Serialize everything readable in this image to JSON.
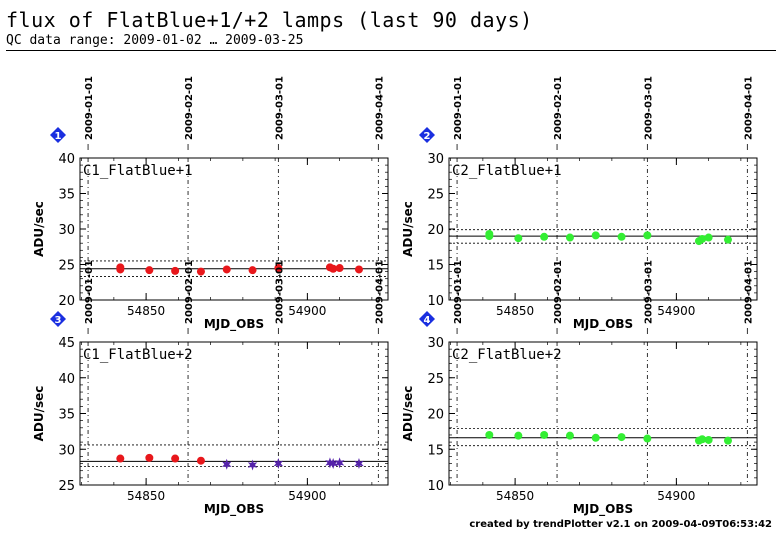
{
  "header": {
    "title": "flux of FlatBlue+1/+2 lamps (last 90 days)",
    "subtitle": "QC data range: 2009-01-02 … 2009-03-25"
  },
  "footer": "created by trendPlotter v2.1 on 2009-04-09T06:53:42",
  "colors": {
    "red": "#e8171b",
    "green": "#33ee33",
    "purple": "#5522aa",
    "badge": "#1a2fe0"
  },
  "chart_data": [
    {
      "type": "scatter",
      "badge": "1",
      "label": "C1_FlatBlue+1",
      "xlabel": "MJD_OBS",
      "ylabel": "ADU/sec",
      "xlim": [
        54829.5,
        54925
      ],
      "ylim": [
        20,
        40
      ],
      "yticks": [
        20,
        25,
        30,
        35,
        40
      ],
      "xticks": [
        54850,
        54900
      ],
      "date_ticks": [
        {
          "x": 54832,
          "label": "2009-01-01"
        },
        {
          "x": 54863,
          "label": "2009-02-01"
        },
        {
          "x": 54891,
          "label": "2009-03-01"
        },
        {
          "x": 54922,
          "label": "2009-04-01"
        }
      ],
      "mean": 24.4,
      "band": [
        23.3,
        25.5
      ],
      "series": [
        {
          "marker": "circle",
          "color": "red",
          "x": [
            54842,
            54842,
            54851,
            54859,
            54867,
            54875,
            54883,
            54891,
            54907,
            54908,
            54910,
            54916
          ],
          "y": [
            24.6,
            24.3,
            24.2,
            24.1,
            24.0,
            24.3,
            24.2,
            24.5,
            24.6,
            24.4,
            24.5,
            24.3
          ]
        }
      ]
    },
    {
      "type": "scatter",
      "badge": "2",
      "label": "C2_FlatBlue+1",
      "xlabel": "MJD_OBS",
      "ylabel": "ADU/sec",
      "xlim": [
        54829.5,
        54925
      ],
      "ylim": [
        10,
        30
      ],
      "yticks": [
        10,
        15,
        20,
        25,
        30
      ],
      "xticks": [
        54850,
        54900
      ],
      "date_ticks": [
        {
          "x": 54832,
          "label": "2009-01-01"
        },
        {
          "x": 54863,
          "label": "2009-02-01"
        },
        {
          "x": 54891,
          "label": "2009-03-01"
        },
        {
          "x": 54922,
          "label": "2009-04-01"
        }
      ],
      "mean": 19.0,
      "band": [
        18.0,
        19.9
      ],
      "series": [
        {
          "marker": "circle",
          "color": "green",
          "x": [
            54842,
            54842,
            54851,
            54859,
            54867,
            54875,
            54883,
            54891,
            54907,
            54908,
            54910,
            54916
          ],
          "y": [
            19.3,
            19.0,
            18.7,
            18.9,
            18.8,
            19.1,
            18.9,
            19.1,
            18.3,
            18.6,
            18.8,
            18.5
          ]
        }
      ]
    },
    {
      "type": "scatter",
      "badge": "3",
      "label": "C1_FlatBlue+2",
      "xlabel": "MJD_OBS",
      "ylabel": "ADU/sec",
      "xlim": [
        54829.5,
        54925
      ],
      "ylim": [
        25,
        45
      ],
      "yticks": [
        25,
        30,
        35,
        40,
        45
      ],
      "xticks": [
        54850,
        54900
      ],
      "date_ticks": [
        {
          "x": 54832,
          "label": "2009-01-01"
        },
        {
          "x": 54863,
          "label": "2009-02-01"
        },
        {
          "x": 54891,
          "label": "2009-03-01"
        },
        {
          "x": 54922,
          "label": "2009-04-01"
        }
      ],
      "mean": 28.3,
      "band": [
        27.6,
        30.6
      ],
      "series": [
        {
          "marker": "circle",
          "color": "red",
          "x": [
            54842,
            54851,
            54859,
            54867
          ],
          "y": [
            28.7,
            28.8,
            28.7,
            28.4
          ]
        },
        {
          "marker": "star",
          "color": "purple",
          "x": [
            54875,
            54883,
            54891,
            54907,
            54908,
            54910,
            54916
          ],
          "y": [
            27.9,
            27.8,
            28.0,
            28.1,
            28.0,
            28.1,
            28.0
          ]
        }
      ]
    },
    {
      "type": "scatter",
      "badge": "4",
      "label": "C2_FlatBlue+2",
      "xlabel": "MJD_OBS",
      "ylabel": "ADU/sec",
      "xlim": [
        54829.5,
        54925
      ],
      "ylim": [
        10,
        30
      ],
      "yticks": [
        10,
        15,
        20,
        25,
        30
      ],
      "xticks": [
        54850,
        54900
      ],
      "date_ticks": [
        {
          "x": 54832,
          "label": "2009-01-01"
        },
        {
          "x": 54863,
          "label": "2009-02-01"
        },
        {
          "x": 54891,
          "label": "2009-03-01"
        },
        {
          "x": 54922,
          "label": "2009-04-01"
        }
      ],
      "mean": 16.6,
      "band": [
        15.5,
        17.9
      ],
      "series": [
        {
          "marker": "circle",
          "color": "green",
          "x": [
            54842,
            54851,
            54859,
            54867,
            54875,
            54883,
            54891,
            54907,
            54908,
            54910,
            54916
          ],
          "y": [
            17.0,
            16.9,
            17.0,
            16.9,
            16.6,
            16.7,
            16.5,
            16.2,
            16.4,
            16.3,
            16.2
          ]
        }
      ]
    }
  ]
}
